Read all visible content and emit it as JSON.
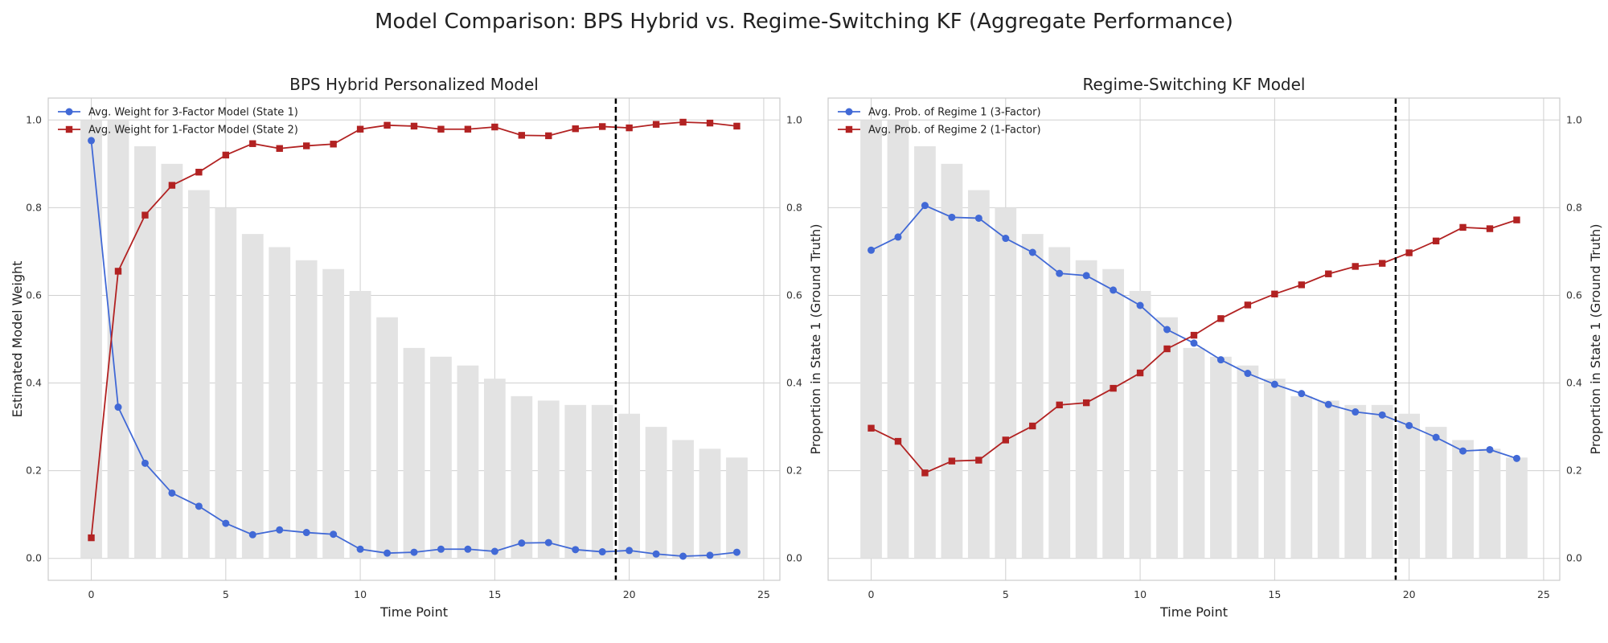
{
  "suptitle": "Model Comparison: BPS Hybrid vs. Regime-Switching KF (Aggregate Performance)",
  "colors": {
    "blue": "#4169d6",
    "red": "#b22222",
    "bars": "#e3e3e3",
    "grid": "#d0d0d0",
    "vline": "#000000"
  },
  "chart_data": [
    {
      "type": "line",
      "title": "BPS Hybrid Personalized Model",
      "xlabel": "Time Point",
      "ylabel": "Estimated Model Weight",
      "ylabel_right": "Proportion in State 1 (Ground Truth)",
      "xlim": [
        -1.6,
        25.6
      ],
      "ylim": [
        -0.05,
        1.05
      ],
      "xticks": [
        "0",
        "5",
        "10",
        "15",
        "20",
        "25"
      ],
      "yticks": [
        "0.0",
        "0.2",
        "0.4",
        "0.6",
        "0.8",
        "1.0"
      ],
      "yticks_right": [
        "0.0",
        "0.2",
        "0.4",
        "0.6",
        "0.8",
        "1.0"
      ],
      "vline_x": 19.5,
      "legend_position": "upper-left",
      "x": [
        0,
        1,
        2,
        3,
        4,
        5,
        6,
        7,
        8,
        9,
        10,
        11,
        12,
        13,
        14,
        15,
        16,
        17,
        18,
        19,
        20,
        21,
        22,
        23,
        24
      ],
      "bars": {
        "axis": "right",
        "values": [
          1.0,
          1.0,
          0.94,
          0.9,
          0.84,
          0.8,
          0.74,
          0.71,
          0.68,
          0.66,
          0.61,
          0.55,
          0.48,
          0.46,
          0.44,
          0.41,
          0.37,
          0.36,
          0.35,
          0.35,
          0.33,
          0.3,
          0.27,
          0.25,
          0.23
        ]
      },
      "series": [
        {
          "name": "Avg. Weight for 3-Factor Model (State 1)",
          "marker": "circle",
          "color": "#4169d6",
          "values": [
            0.953,
            0.345,
            0.217,
            0.149,
            0.119,
            0.08,
            0.054,
            0.065,
            0.059,
            0.055,
            0.021,
            0.012,
            0.014,
            0.021,
            0.021,
            0.016,
            0.035,
            0.036,
            0.02,
            0.015,
            0.018,
            0.01,
            0.005,
            0.007,
            0.014
          ]
        },
        {
          "name": "Avg. Weight for 1-Factor Model (State 2)",
          "marker": "square",
          "color": "#b22222",
          "values": [
            0.047,
            0.655,
            0.783,
            0.851,
            0.881,
            0.92,
            0.946,
            0.935,
            0.941,
            0.945,
            0.979,
            0.988,
            0.986,
            0.979,
            0.979,
            0.984,
            0.965,
            0.964,
            0.98,
            0.985,
            0.982,
            0.99,
            0.995,
            0.993,
            0.986
          ]
        }
      ]
    },
    {
      "type": "line",
      "title": "Regime-Switching KF Model",
      "xlabel": "Time Point",
      "ylabel": "",
      "ylabel_right": "Proportion in State 1 (Ground Truth)",
      "xlim": [
        -1.6,
        25.6
      ],
      "ylim": [
        -0.05,
        1.05
      ],
      "xticks": [
        "0",
        "5",
        "10",
        "15",
        "20",
        "25"
      ],
      "yticks": [],
      "yticks_right": [
        "0.0",
        "0.2",
        "0.4",
        "0.6",
        "0.8",
        "1.0"
      ],
      "vline_x": 19.5,
      "legend_position": "upper-left",
      "x": [
        0,
        1,
        2,
        3,
        4,
        5,
        6,
        7,
        8,
        9,
        10,
        11,
        12,
        13,
        14,
        15,
        16,
        17,
        18,
        19,
        20,
        21,
        22,
        23,
        24
      ],
      "bars": {
        "axis": "right",
        "values": [
          1.0,
          1.0,
          0.94,
          0.9,
          0.84,
          0.8,
          0.74,
          0.71,
          0.68,
          0.66,
          0.61,
          0.55,
          0.48,
          0.46,
          0.44,
          0.41,
          0.37,
          0.36,
          0.35,
          0.35,
          0.33,
          0.3,
          0.27,
          0.25,
          0.23
        ]
      },
      "series": [
        {
          "name": "Avg. Prob. of Regime 1 (3-Factor)",
          "marker": "circle",
          "color": "#4169d6",
          "values": [
            0.703,
            0.733,
            0.805,
            0.778,
            0.776,
            0.73,
            0.698,
            0.65,
            0.645,
            0.612,
            0.577,
            0.522,
            0.491,
            0.453,
            0.422,
            0.397,
            0.376,
            0.351,
            0.334,
            0.327,
            0.303,
            0.276,
            0.245,
            0.248,
            0.228
          ]
        },
        {
          "name": "Avg. Prob. of Regime 2 (1-Factor)",
          "marker": "square",
          "color": "#b22222",
          "values": [
            0.297,
            0.267,
            0.195,
            0.222,
            0.224,
            0.27,
            0.302,
            0.35,
            0.355,
            0.388,
            0.423,
            0.478,
            0.509,
            0.547,
            0.578,
            0.603,
            0.624,
            0.649,
            0.666,
            0.673,
            0.697,
            0.724,
            0.755,
            0.752,
            0.772
          ]
        }
      ]
    }
  ]
}
